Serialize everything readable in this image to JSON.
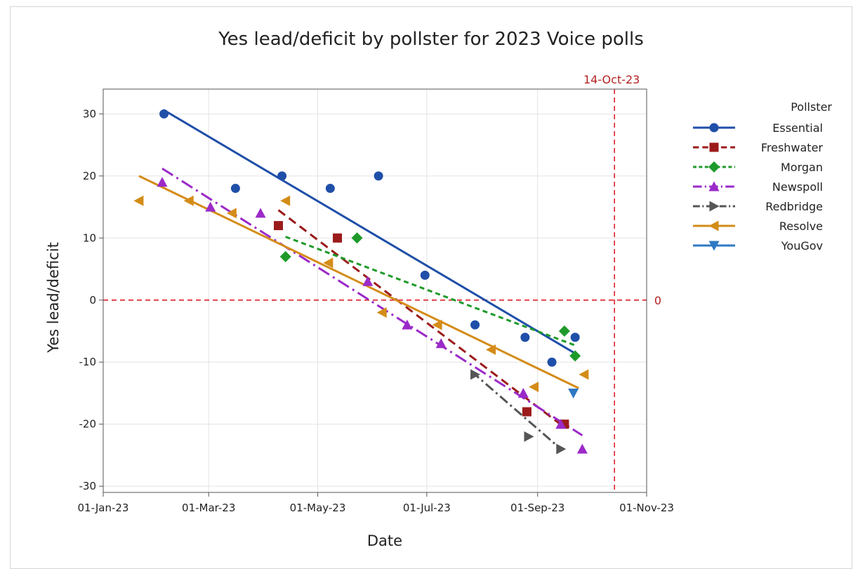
{
  "chart_data": {
    "type": "scatter",
    "title": "Yes lead/deficit by pollster for 2023 Voice polls",
    "xlabel": "Date",
    "ylabel": "Yes lead/deficit",
    "x_ticks": [
      "01-Jan-23",
      "01-Mar-23",
      "01-May-23",
      "01-Jul-23",
      "01-Sep-23",
      "01-Nov-23"
    ],
    "x_tick_days": [
      0,
      59,
      120,
      181,
      243,
      304
    ],
    "xlim_days": [
      0,
      304
    ],
    "ylim": [
      -31,
      34
    ],
    "y_ticks": [
      30,
      20,
      10,
      0,
      -10,
      -20,
      -30
    ],
    "grid": true,
    "legend_title": "Pollster",
    "legend_position": "right",
    "reference_lines": {
      "vertical": {
        "label": "14-Oct-23",
        "day": 286,
        "color": "#e0202a"
      },
      "horizontal": {
        "label": "0",
        "value": 0,
        "color": "#e0202a"
      }
    },
    "series": [
      {
        "name": "Essential",
        "color": "#1f4fa8",
        "marker": "circle",
        "dash": "",
        "points": [
          [
            34,
            30
          ],
          [
            74,
            18
          ],
          [
            100,
            20
          ],
          [
            127,
            18
          ],
          [
            154,
            20
          ],
          [
            180,
            4
          ],
          [
            208,
            -4
          ],
          [
            236,
            -6
          ],
          [
            251,
            -10
          ],
          [
            264,
            -6
          ]
        ],
        "trend": [
          [
            34,
            30.6
          ],
          [
            264,
            -8.6
          ]
        ]
      },
      {
        "name": "Freshwater",
        "color": "#9b1b1b",
        "marker": "square",
        "dash": "12 7",
        "points": [
          [
            98,
            12
          ],
          [
            131,
            10
          ],
          [
            237,
            -18
          ],
          [
            258,
            -20
          ]
        ],
        "trend": [
          [
            98,
            14.5
          ],
          [
            258,
            -20.5
          ]
        ]
      },
      {
        "name": "Morgan",
        "color": "#1e9a2a",
        "marker": "diamond",
        "dash": "7 5",
        "points": [
          [
            102,
            7
          ],
          [
            142,
            10
          ],
          [
            258,
            -5
          ],
          [
            264,
            -9
          ]
        ],
        "trend": [
          [
            102,
            10.2
          ],
          [
            264,
            -7.3
          ]
        ]
      },
      {
        "name": "Newspoll",
        "color": "#9b2ac8",
        "marker": "triangle-up",
        "dash": "18 6 3 6",
        "points": [
          [
            33,
            19
          ],
          [
            60,
            15
          ],
          [
            88,
            14
          ],
          [
            148,
            3
          ],
          [
            170,
            -4
          ],
          [
            189,
            -7
          ],
          [
            235,
            -15
          ],
          [
            256,
            -20
          ],
          [
            268,
            -24
          ]
        ],
        "trend": [
          [
            33,
            21.2
          ],
          [
            268,
            -21.8
          ]
        ]
      },
      {
        "name": "Redbridge",
        "color": "#555555",
        "marker": "triangle-right",
        "dash": "14 5 3 5",
        "points": [
          [
            208,
            -12
          ],
          [
            238,
            -22
          ],
          [
            256,
            -24
          ]
        ],
        "trend": [
          [
            206,
            -11.5
          ],
          [
            256,
            -24
          ]
        ]
      },
      {
        "name": "Resolve",
        "color": "#d48c18",
        "marker": "triangle-left",
        "dash": "",
        "points": [
          [
            20,
            16
          ],
          [
            48,
            16
          ],
          [
            72,
            14
          ],
          [
            102,
            16
          ],
          [
            126,
            6
          ],
          [
            156,
            -2
          ],
          [
            187,
            -4
          ],
          [
            217,
            -8
          ],
          [
            241,
            -14
          ],
          [
            269,
            -12
          ]
        ],
        "trend": [
          [
            20,
            20
          ],
          [
            266,
            -14.2
          ]
        ]
      },
      {
        "name": "YouGov",
        "color": "#2f78c4",
        "marker": "triangle-down",
        "dash": "",
        "points": [
          [
            263,
            -15
          ]
        ],
        "trend": []
      }
    ]
  }
}
